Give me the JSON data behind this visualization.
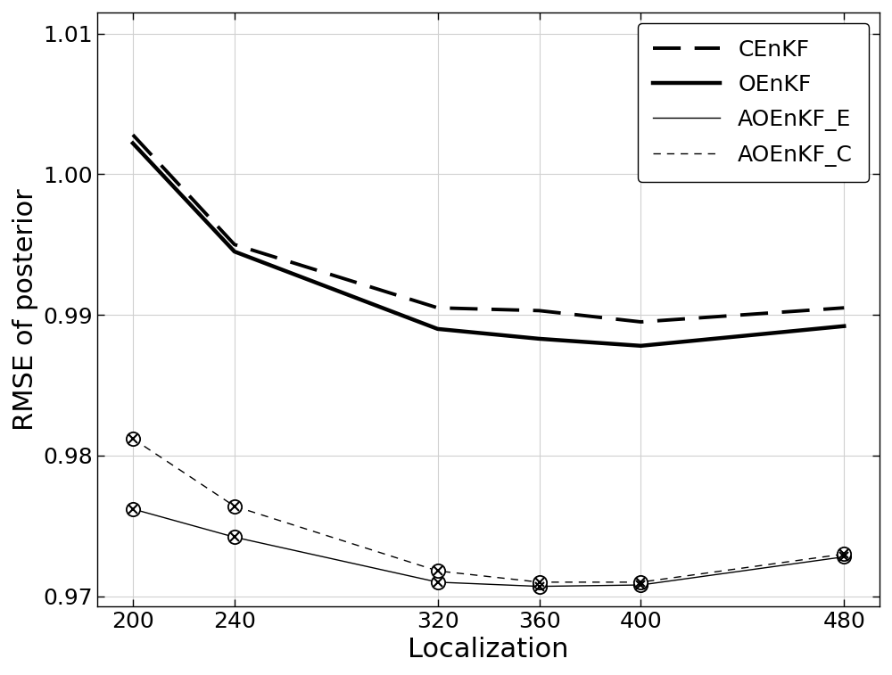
{
  "x": [
    200,
    240,
    320,
    360,
    400,
    480
  ],
  "CEnKF": [
    1.0028,
    0.995,
    0.9905,
    0.9903,
    0.9895,
    0.9905
  ],
  "OEnKF": [
    1.0022,
    0.9945,
    0.989,
    0.9883,
    0.9878,
    0.9892
  ],
  "AOEnKF_E": [
    0.9762,
    0.9742,
    0.971,
    0.9707,
    0.9708,
    0.9728
  ],
  "AOEnKF_C": [
    0.9812,
    0.9764,
    0.9718,
    0.971,
    0.971,
    0.973
  ],
  "xlabel": "Localization",
  "ylabel": "RMSE of posterior",
  "ylim": [
    0.9693,
    1.0115
  ],
  "yticks": [
    0.97,
    0.98,
    0.99,
    1.0,
    1.01
  ],
  "xticks": [
    200,
    240,
    320,
    360,
    400,
    480
  ],
  "legend_labels": [
    "CEnKF",
    "OEnKF",
    "AOEnKF_E",
    "AOEnKF_C"
  ],
  "bg_color": "#ffffff",
  "grid_color": "#d0d0d0"
}
